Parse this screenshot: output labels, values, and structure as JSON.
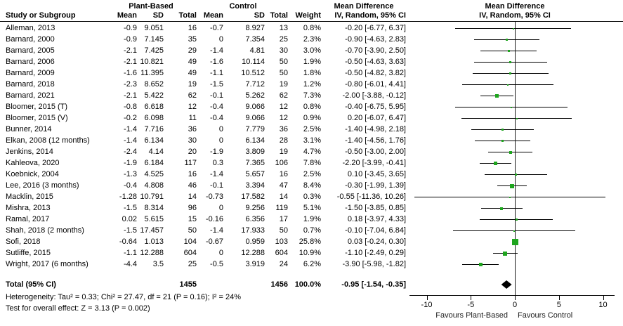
{
  "header": {
    "group1": "Plant-Based",
    "group2": "Control",
    "md_title_text": "Mean Difference",
    "md_title_plot": "Mean Difference",
    "sub_text": "IV, Random, 95% CI",
    "sub_plot": "IV, Random, 95% CI",
    "col_study": "Study or Subgroup",
    "col_mean": "Mean",
    "col_sd": "SD",
    "col_total": "Total",
    "col_weight": "Weight"
  },
  "chart_data": {
    "type": "scatter",
    "subtype": "forest-plot",
    "title": "Mean Difference  IV, Random, 95% CI",
    "effect_color": "#1ea51e",
    "diamond_color": "#000000",
    "axis": {
      "xlim": [
        -10,
        10
      ],
      "ticks": [
        "-10",
        "-5",
        "0",
        "5",
        "10"
      ],
      "tick_values": [
        -10,
        -5,
        0,
        5,
        10
      ],
      "favours_left": "Favours Plant-Based",
      "favours_right": "Favours Control"
    },
    "studies": [
      {
        "name": "Alleman, 2013",
        "pb_mean": "-0.9",
        "pb_sd": "9.051",
        "pb_total": "16",
        "c_mean": "-0.7",
        "c_sd": "8.927",
        "c_total": "13",
        "weight": "0.8%",
        "ci_text": "-0.20 [-6.77, 6.37]",
        "md": -0.2,
        "lo": -6.77,
        "hi": 6.37,
        "w": 0.8
      },
      {
        "name": "Barnard, 2000",
        "pb_mean": "-0.9",
        "pb_sd": "7.145",
        "pb_total": "35",
        "c_mean": "0",
        "c_sd": "7.354",
        "c_total": "25",
        "weight": "2.3%",
        "ci_text": "-0.90 [-4.63, 2.83]",
        "md": -0.9,
        "lo": -4.63,
        "hi": 2.83,
        "w": 2.3
      },
      {
        "name": "Barnard, 2005",
        "pb_mean": "-2.1",
        "pb_sd": "7.425",
        "pb_total": "29",
        "c_mean": "-1.4",
        "c_sd": "4.81",
        "c_total": "30",
        "weight": "3.0%",
        "ci_text": "-0.70 [-3.90, 2.50]",
        "md": -0.7,
        "lo": -3.9,
        "hi": 2.5,
        "w": 3.0
      },
      {
        "name": "Barnard, 2006",
        "pb_mean": "-2.1",
        "pb_sd": "10.821",
        "pb_total": "49",
        "c_mean": "-1.6",
        "c_sd": "10.114",
        "c_total": "50",
        "weight": "1.9%",
        "ci_text": "-0.50 [-4.63, 3.63]",
        "md": -0.5,
        "lo": -4.63,
        "hi": 3.63,
        "w": 1.9
      },
      {
        "name": "Barnard, 2009",
        "pb_mean": "-1.6",
        "pb_sd": "11.395",
        "pb_total": "49",
        "c_mean": "-1.1",
        "c_sd": "10.512",
        "c_total": "50",
        "weight": "1.8%",
        "ci_text": "-0.50 [-4.82, 3.82]",
        "md": -0.5,
        "lo": -4.82,
        "hi": 3.82,
        "w": 1.8
      },
      {
        "name": "Barnard, 2018",
        "pb_mean": "-2.3",
        "pb_sd": "8.652",
        "pb_total": "19",
        "c_mean": "-1.5",
        "c_sd": "7.712",
        "c_total": "19",
        "weight": "1.2%",
        "ci_text": "-0.80 [-6.01, 4.41]",
        "md": -0.8,
        "lo": -6.01,
        "hi": 4.41,
        "w": 1.2
      },
      {
        "name": "Barnard, 2021",
        "pb_mean": "-2.1",
        "pb_sd": "5.422",
        "pb_total": "62",
        "c_mean": "-0.1",
        "c_sd": "5.262",
        "c_total": "62",
        "weight": "7.3%",
        "ci_text": "-2.00 [-3.88, -0.12]",
        "md": -2.0,
        "lo": -3.88,
        "hi": -0.12,
        "w": 7.3
      },
      {
        "name": "Bloomer, 2015 (T)",
        "pb_mean": "-0.8",
        "pb_sd": "6.618",
        "pb_total": "12",
        "c_mean": "-0.4",
        "c_sd": "9.066",
        "c_total": "12",
        "weight": "0.8%",
        "ci_text": "-0.40 [-6.75, 5.95]",
        "md": -0.4,
        "lo": -6.75,
        "hi": 5.95,
        "w": 0.8
      },
      {
        "name": "Bloomer, 2015 (V)",
        "pb_mean": "-0.2",
        "pb_sd": "6.098",
        "pb_total": "11",
        "c_mean": "-0.4",
        "c_sd": "9.066",
        "c_total": "12",
        "weight": "0.9%",
        "ci_text": "0.20 [-6.07, 6.47]",
        "md": 0.2,
        "lo": -6.07,
        "hi": 6.47,
        "w": 0.9
      },
      {
        "name": "Bunner, 2014",
        "pb_mean": "-1.4",
        "pb_sd": "7.716",
        "pb_total": "36",
        "c_mean": "0",
        "c_sd": "7.779",
        "c_total": "36",
        "weight": "2.5%",
        "ci_text": "-1.40 [-4.98, 2.18]",
        "md": -1.4,
        "lo": -4.98,
        "hi": 2.18,
        "w": 2.5
      },
      {
        "name": "Elkan, 2008 (12 months)",
        "pb_mean": "-1.4",
        "pb_sd": "6.134",
        "pb_total": "30",
        "c_mean": "0",
        "c_sd": "6.134",
        "c_total": "28",
        "weight": "3.1%",
        "ci_text": "-1.40 [-4.56, 1.76]",
        "md": -1.4,
        "lo": -4.56,
        "hi": 1.76,
        "w": 3.1
      },
      {
        "name": "Jenkins, 2014",
        "pb_mean": "-2.4",
        "pb_sd": "4.14",
        "pb_total": "20",
        "c_mean": "-1.9",
        "c_sd": "3.809",
        "c_total": "19",
        "weight": "4.7%",
        "ci_text": "-0.50 [-3.00, 2.00]",
        "md": -0.5,
        "lo": -3.0,
        "hi": 2.0,
        "w": 4.7
      },
      {
        "name": "Kahleova, 2020",
        "pb_mean": "-1.9",
        "pb_sd": "6.184",
        "pb_total": "117",
        "c_mean": "0.3",
        "c_sd": "7.365",
        "c_total": "106",
        "weight": "7.8%",
        "ci_text": "-2.20 [-3.99, -0.41]",
        "md": -2.2,
        "lo": -3.99,
        "hi": -0.41,
        "w": 7.8
      },
      {
        "name": "Koebnick, 2004",
        "pb_mean": "-1.3",
        "pb_sd": "4.525",
        "pb_total": "16",
        "c_mean": "-1.4",
        "c_sd": "5.657",
        "c_total": "16",
        "weight": "2.5%",
        "ci_text": "0.10 [-3.45, 3.65]",
        "md": 0.1,
        "lo": -3.45,
        "hi": 3.65,
        "w": 2.5
      },
      {
        "name": "Lee, 2016 (3 months)",
        "pb_mean": "-0.4",
        "pb_sd": "4.808",
        "pb_total": "46",
        "c_mean": "-0.1",
        "c_sd": "3.394",
        "c_total": "47",
        "weight": "8.4%",
        "ci_text": "-0.30 [-1.99, 1.39]",
        "md": -0.3,
        "lo": -1.99,
        "hi": 1.39,
        "w": 8.4
      },
      {
        "name": "Macklin, 2015",
        "pb_mean": "-1.28",
        "pb_sd": "10.791",
        "pb_total": "14",
        "c_mean": "-0.73",
        "c_sd": "17.582",
        "c_total": "14",
        "weight": "0.3%",
        "ci_text": "-0.55 [-11.36, 10.26]",
        "md": -0.55,
        "lo": -11.36,
        "hi": 10.26,
        "w": 0.3
      },
      {
        "name": "Mishra, 2013",
        "pb_mean": "-1.5",
        "pb_sd": "8.314",
        "pb_total": "96",
        "c_mean": "0",
        "c_sd": "9.256",
        "c_total": "119",
        "weight": "5.1%",
        "ci_text": "-1.50 [-3.85, 0.85]",
        "md": -1.5,
        "lo": -3.85,
        "hi": 0.85,
        "w": 5.1
      },
      {
        "name": "Ramal, 2017",
        "pb_mean": "0.02",
        "pb_sd": "5.615",
        "pb_total": "15",
        "c_mean": "-0.16",
        "c_sd": "6.356",
        "c_total": "17",
        "weight": "1.9%",
        "ci_text": "0.18 [-3.97, 4.33]",
        "md": 0.18,
        "lo": -3.97,
        "hi": 4.33,
        "w": 1.9
      },
      {
        "name": "Shah, 2018 (2 months)",
        "pb_mean": "-1.5",
        "pb_sd": "17.457",
        "pb_total": "50",
        "c_mean": "-1.4",
        "c_sd": "17.933",
        "c_total": "50",
        "weight": "0.7%",
        "ci_text": "-0.10 [-7.04, 6.84]",
        "md": -0.1,
        "lo": -7.04,
        "hi": 6.84,
        "w": 0.7
      },
      {
        "name": "Sofi, 2018",
        "pb_mean": "-0.64",
        "pb_sd": "1.013",
        "pb_total": "104",
        "c_mean": "-0.67",
        "c_sd": "0.959",
        "c_total": "103",
        "weight": "25.8%",
        "ci_text": "0.03 [-0.24, 0.30]",
        "md": 0.03,
        "lo": -0.24,
        "hi": 0.3,
        "w": 25.8
      },
      {
        "name": "Sutliffe, 2015",
        "pb_mean": "-1.1",
        "pb_sd": "12.288",
        "pb_total": "604",
        "c_mean": "0",
        "c_sd": "12.288",
        "c_total": "604",
        "weight": "10.9%",
        "ci_text": "-1.10 [-2.49, 0.29]",
        "md": -1.1,
        "lo": -2.49,
        "hi": 0.29,
        "w": 10.9
      },
      {
        "name": "Wright, 2017 (6 months)",
        "pb_mean": "-4.4",
        "pb_sd": "3.5",
        "pb_total": "25",
        "c_mean": "-0.5",
        "c_sd": "3.919",
        "c_total": "24",
        "weight": "6.2%",
        "ci_text": "-3.90 [-5.98, -1.82]",
        "md": -3.9,
        "lo": -5.98,
        "hi": -1.82,
        "w": 6.2
      }
    ],
    "total": {
      "label": "Total (95% CI)",
      "pb_total": "1455",
      "c_total": "1456",
      "weight": "100.0%",
      "ci_text": "-0.95 [-1.54, -0.35]",
      "md": -0.95,
      "lo": -1.54,
      "hi": -0.35
    }
  },
  "footer": {
    "heterogeneity": "Heterogeneity: Tau² = 0.33; Chi² = 27.47, df = 21 (P = 0.16); I² = 24%",
    "overall_effect": "Test for overall effect: Z = 3.13 (P = 0.002)"
  }
}
